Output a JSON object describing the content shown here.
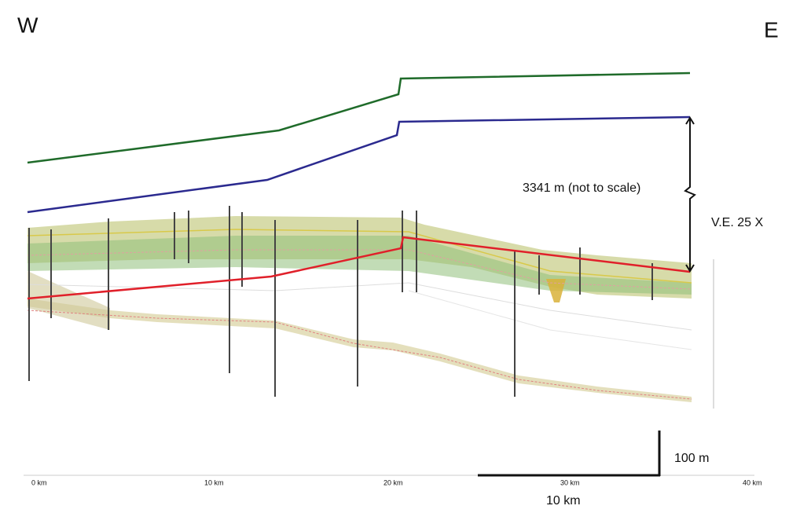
{
  "labels": {
    "west": "W",
    "east": "E",
    "thickness": "3341 m (not to scale)",
    "vertical_exaggeration": "V.E. 25 X",
    "vertical_scale": "100 m",
    "horizontal_scale": "10 km"
  },
  "distance_axis": [
    "0 km",
    "10 km",
    "20 km",
    "30 km",
    "40 km"
  ]
}
